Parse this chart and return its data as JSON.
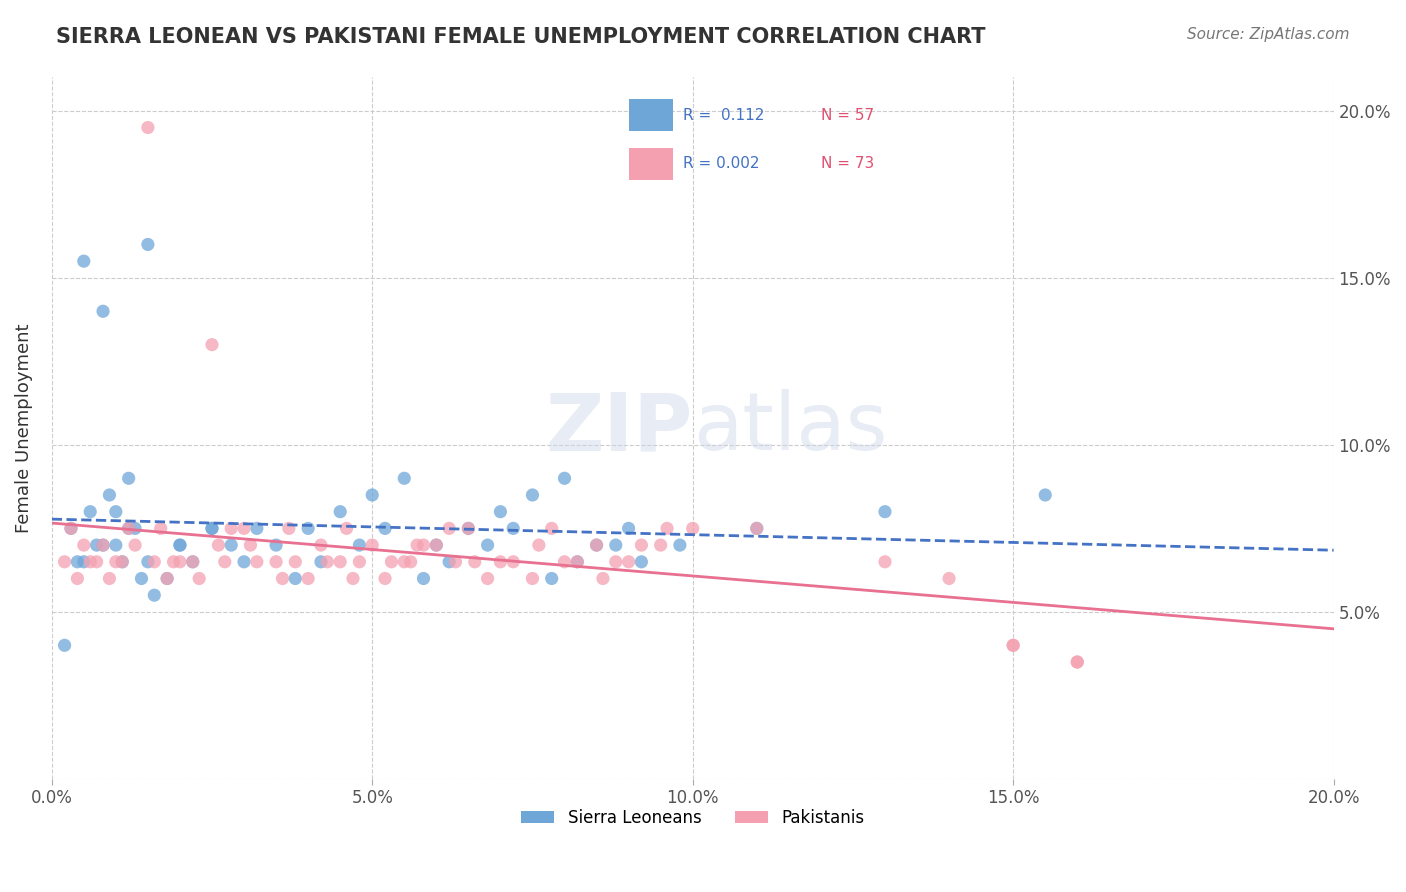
{
  "title": "SIERRA LEONEAN VS PAKISTANI FEMALE UNEMPLOYMENT CORRELATION CHART",
  "source": "Source: ZipAtlas.com",
  "xlabel": "",
  "ylabel": "Female Unemployment",
  "xlim": [
    0.0,
    0.2
  ],
  "ylim": [
    0.0,
    0.21
  ],
  "xticks": [
    0.0,
    0.05,
    0.1,
    0.15,
    0.2
  ],
  "yticks": [
    0.0,
    0.05,
    0.1,
    0.15,
    0.2
  ],
  "xticklabels": [
    "0.0%",
    "5.0%",
    "10.0%",
    "15.0%",
    "20.0%"
  ],
  "yticklabels": [
    "",
    "5.0%",
    "10.0%",
    "15.0%",
    "20.0%"
  ],
  "sierra_R": 0.112,
  "sierra_N": 57,
  "pakistani_R": 0.002,
  "pakistani_N": 73,
  "sierra_color": "#6ea6d8",
  "pakistani_color": "#f4a0b0",
  "sierra_line_color": "#4472c4",
  "pakistani_line_color": "#e87090",
  "watermark_zip": "ZIP",
  "watermark_atlas": "atlas",
  "sierra_x": [
    0.01,
    0.005,
    0.015,
    0.008,
    0.012,
    0.003,
    0.006,
    0.009,
    0.011,
    0.014,
    0.016,
    0.007,
    0.004,
    0.013,
    0.02,
    0.025,
    0.03,
    0.035,
    0.04,
    0.045,
    0.05,
    0.055,
    0.06,
    0.065,
    0.07,
    0.075,
    0.08,
    0.085,
    0.09,
    0.01,
    0.015,
    0.02,
    0.025,
    0.005,
    0.008,
    0.012,
    0.018,
    0.022,
    0.028,
    0.032,
    0.038,
    0.042,
    0.048,
    0.052,
    0.058,
    0.062,
    0.068,
    0.072,
    0.078,
    0.082,
    0.088,
    0.092,
    0.098,
    0.11,
    0.13,
    0.155,
    0.002
  ],
  "sierra_y": [
    0.07,
    0.155,
    0.16,
    0.14,
    0.09,
    0.075,
    0.08,
    0.085,
    0.065,
    0.06,
    0.055,
    0.07,
    0.065,
    0.075,
    0.07,
    0.075,
    0.065,
    0.07,
    0.075,
    0.08,
    0.085,
    0.09,
    0.07,
    0.075,
    0.08,
    0.085,
    0.09,
    0.07,
    0.075,
    0.08,
    0.065,
    0.07,
    0.075,
    0.065,
    0.07,
    0.075,
    0.06,
    0.065,
    0.07,
    0.075,
    0.06,
    0.065,
    0.07,
    0.075,
    0.06,
    0.065,
    0.07,
    0.075,
    0.06,
    0.065,
    0.07,
    0.065,
    0.07,
    0.075,
    0.08,
    0.085,
    0.04
  ],
  "pakistani_x": [
    0.005,
    0.01,
    0.015,
    0.02,
    0.025,
    0.03,
    0.035,
    0.04,
    0.045,
    0.05,
    0.055,
    0.06,
    0.065,
    0.07,
    0.075,
    0.08,
    0.085,
    0.09,
    0.095,
    0.1,
    0.002,
    0.004,
    0.006,
    0.008,
    0.012,
    0.016,
    0.018,
    0.022,
    0.026,
    0.028,
    0.032,
    0.036,
    0.038,
    0.042,
    0.046,
    0.048,
    0.052,
    0.056,
    0.058,
    0.062,
    0.066,
    0.068,
    0.072,
    0.076,
    0.078,
    0.082,
    0.086,
    0.088,
    0.092,
    0.096,
    0.11,
    0.13,
    0.14,
    0.15,
    0.16,
    0.15,
    0.16,
    0.003,
    0.007,
    0.009,
    0.011,
    0.013,
    0.017,
    0.019,
    0.023,
    0.027,
    0.031,
    0.037,
    0.043,
    0.047,
    0.053,
    0.057,
    0.063
  ],
  "pakistani_y": [
    0.07,
    0.065,
    0.195,
    0.065,
    0.13,
    0.075,
    0.065,
    0.06,
    0.065,
    0.07,
    0.065,
    0.07,
    0.075,
    0.065,
    0.06,
    0.065,
    0.07,
    0.065,
    0.07,
    0.075,
    0.065,
    0.06,
    0.065,
    0.07,
    0.075,
    0.065,
    0.06,
    0.065,
    0.07,
    0.075,
    0.065,
    0.06,
    0.065,
    0.07,
    0.075,
    0.065,
    0.06,
    0.065,
    0.07,
    0.075,
    0.065,
    0.06,
    0.065,
    0.07,
    0.075,
    0.065,
    0.06,
    0.065,
    0.07,
    0.075,
    0.075,
    0.065,
    0.06,
    0.04,
    0.035,
    0.04,
    0.035,
    0.075,
    0.065,
    0.06,
    0.065,
    0.07,
    0.075,
    0.065,
    0.06,
    0.065,
    0.07,
    0.075,
    0.065,
    0.06,
    0.065,
    0.07,
    0.065
  ]
}
